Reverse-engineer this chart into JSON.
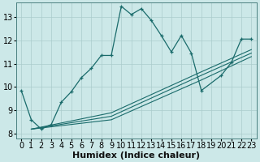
{
  "xlabel": "Humidex (Indice chaleur)",
  "bg_color": "#cce8e8",
  "grid_color": "#aacccc",
  "line_color": "#1a6b6b",
  "marker": "+",
  "xlim": [
    -0.5,
    23.5
  ],
  "ylim": [
    7.8,
    13.6
  ],
  "yticks": [
    8,
    9,
    10,
    11,
    12,
    13
  ],
  "xticks": [
    0,
    1,
    2,
    3,
    4,
    5,
    6,
    7,
    8,
    9,
    10,
    11,
    12,
    13,
    14,
    15,
    16,
    17,
    18,
    19,
    20,
    21,
    22,
    23
  ],
  "series": [
    {
      "x": [
        0,
        1,
        2,
        3,
        4,
        5,
        6,
        7,
        8,
        9,
        10,
        11,
        12,
        13,
        14,
        15,
        16,
        17,
        18,
        20,
        21,
        22,
        23
      ],
      "y": [
        9.85,
        8.6,
        8.2,
        8.4,
        9.35,
        9.8,
        10.4,
        10.8,
        11.35,
        11.35,
        13.45,
        13.1,
        13.35,
        12.85,
        12.2,
        11.5,
        12.2,
        11.45,
        9.85,
        10.5,
        11.05,
        12.05,
        12.05
      ],
      "has_marker": true
    },
    {
      "x": [
        1,
        9,
        18,
        23
      ],
      "y": [
        8.2,
        8.6,
        10.3,
        11.3
      ],
      "has_marker": false
    },
    {
      "x": [
        1,
        9,
        18,
        23
      ],
      "y": [
        8.2,
        8.75,
        10.5,
        11.45
      ],
      "has_marker": false
    },
    {
      "x": [
        1,
        9,
        18,
        23
      ],
      "y": [
        8.2,
        8.9,
        10.65,
        11.6
      ],
      "has_marker": false
    }
  ],
  "xlabel_fontsize": 8,
  "tick_fontsize": 7
}
